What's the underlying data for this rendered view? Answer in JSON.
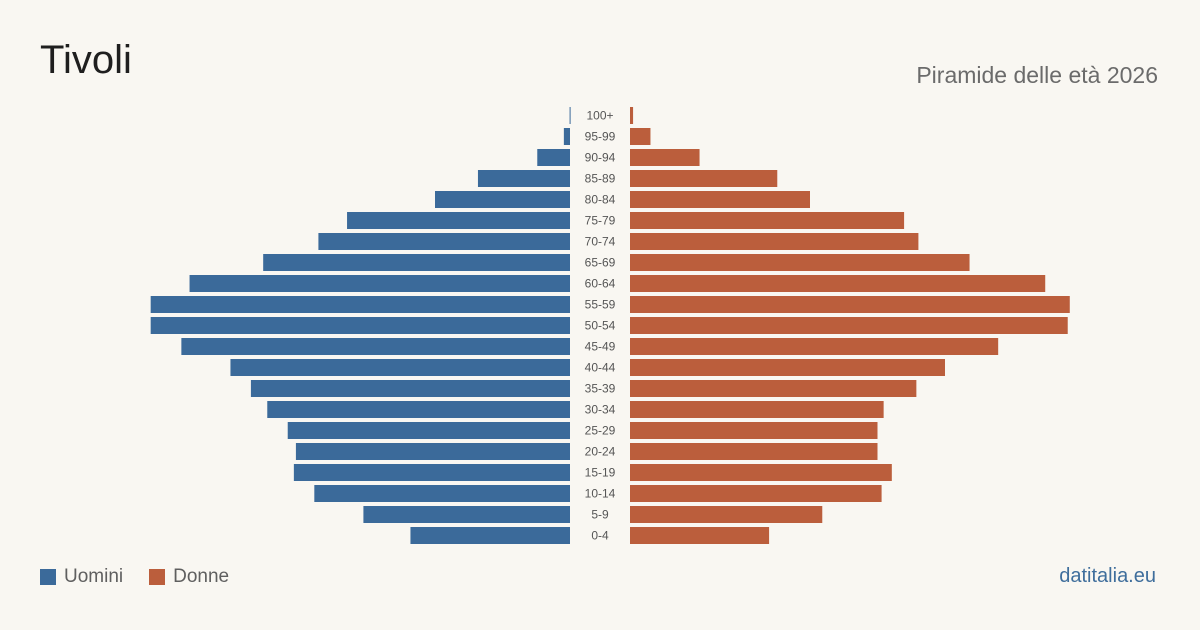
{
  "header": {
    "title": "Tivoli",
    "subtitle": "Piramide delle età 2026"
  },
  "legend": {
    "men_label": "Uomini",
    "women_label": "Donne"
  },
  "footer": {
    "source": "datitalia.eu"
  },
  "colors": {
    "men": "#3b6a9a",
    "women": "#bb5e3c",
    "background": "#f9f7f2",
    "age_label": "#555555"
  },
  "chart_data": {
    "type": "bar",
    "orientation": "horizontal-pyramid",
    "categories": [
      "100+",
      "95-99",
      "90-94",
      "85-89",
      "80-84",
      "75-79",
      "70-74",
      "65-69",
      "60-64",
      "55-59",
      "50-54",
      "45-49",
      "40-44",
      "35-39",
      "30-34",
      "25-29",
      "20-24",
      "15-19",
      "10-14",
      "5-9",
      "0-4"
    ],
    "series": [
      {
        "name": "Uomini",
        "values": [
          2,
          30,
          160,
          450,
          660,
          1090,
          1230,
          1500,
          1860,
          2050,
          2050,
          1900,
          1660,
          1560,
          1480,
          1380,
          1340,
          1350,
          1250,
          1010,
          780
        ]
      },
      {
        "name": "Donne",
        "values": [
          15,
          100,
          340,
          720,
          880,
          1340,
          1410,
          1660,
          2030,
          2150,
          2140,
          1800,
          1540,
          1400,
          1240,
          1210,
          1210,
          1280,
          1230,
          940,
          680
        ]
      }
    ],
    "xlim": [
      0,
      2200
    ],
    "grid": false,
    "legend_position": "bottom-left"
  }
}
